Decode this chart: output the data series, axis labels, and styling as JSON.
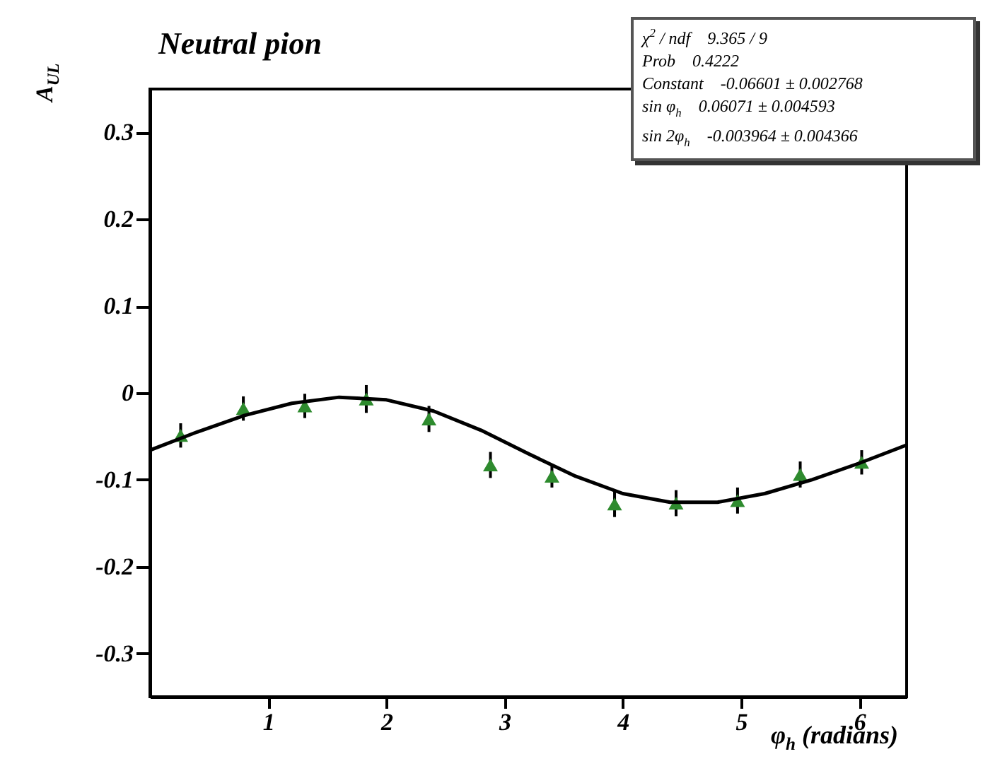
{
  "chart_data": {
    "type": "scatter",
    "title": "Neutral pion",
    "xlabel": "φ$_{h}$ (radians)",
    "ylabel": "A$_{UL}$",
    "xlim": [
      0,
      6.4
    ],
    "xticks": [
      1,
      2,
      3,
      4,
      5,
      6
    ],
    "ylim": [
      -0.35,
      0.35
    ],
    "yticks": [
      -0.3,
      -0.2,
      -0.1,
      0,
      0.1,
      0.2,
      0.3
    ],
    "grid": false,
    "legend": false,
    "series": [
      {
        "color": "#2e8b2e",
        "marker": "triangle",
        "x": [
          0.26,
          0.79,
          1.31,
          1.83,
          2.36,
          2.88,
          3.4,
          3.93,
          4.45,
          4.97,
          5.5,
          6.02
        ],
        "values": [
          -0.049,
          -0.018,
          -0.015,
          -0.007,
          -0.03,
          -0.083,
          -0.096,
          -0.128,
          -0.127,
          -0.124,
          -0.094,
          -0.08
        ],
        "errors": [
          0.014,
          0.014,
          0.014,
          0.016,
          0.015,
          0.015,
          0.013,
          0.015,
          0.015,
          0.015,
          0.015,
          0.014
        ]
      },
      {
        "type": "line",
        "color": "#000000",
        "x": [
          0,
          0.4,
          0.8,
          1.2,
          1.6,
          2.0,
          2.4,
          2.8,
          3.2,
          3.6,
          4.0,
          4.4,
          4.8,
          5.2,
          5.6,
          6.0,
          6.4
        ],
        "values": [
          -0.066,
          -0.045,
          -0.026,
          -0.012,
          -0.005,
          -0.008,
          -0.021,
          -0.043,
          -0.07,
          -0.096,
          -0.116,
          -0.126,
          -0.126,
          -0.116,
          -0.1,
          -0.081,
          -0.06
        ]
      }
    ],
    "annotations": [
      "χ$^{2}$ / ndf    9.365 / 9",
      "Prob    0.4222",
      "Constant    -0.06601 ± 0.002768",
      "sin φ$_{h}$    0.06071 ± 0.004593",
      "sin 2φ$_{h}$    -0.003964 ± 0.004366"
    ]
  }
}
